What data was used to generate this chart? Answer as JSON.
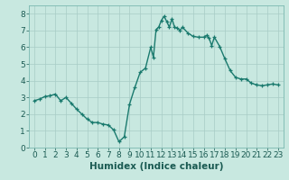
{
  "x": [
    0,
    0.5,
    1,
    1.5,
    2,
    2.5,
    3,
    3.5,
    4,
    4.5,
    5,
    5.5,
    6,
    6.5,
    7,
    7.5,
    8,
    8.5,
    9,
    9.5,
    10,
    10.5,
    11,
    11.25,
    11.5,
    11.75,
    12,
    12.25,
    12.5,
    12.75,
    13,
    13.25,
    13.5,
    13.75,
    14,
    14.5,
    15,
    15.5,
    16,
    16.25,
    16.5,
    16.75,
    17,
    17.5,
    18,
    18.5,
    19,
    19.5,
    20,
    20.5,
    21,
    21.5,
    22,
    22.5,
    23
  ],
  "y": [
    2.8,
    2.9,
    3.05,
    3.1,
    3.2,
    2.8,
    3.0,
    2.65,
    2.3,
    2.0,
    1.7,
    1.5,
    1.5,
    1.4,
    1.35,
    1.05,
    0.35,
    0.65,
    2.6,
    3.6,
    4.5,
    4.75,
    6.0,
    5.4,
    7.05,
    7.2,
    7.6,
    7.85,
    7.55,
    7.2,
    7.7,
    7.2,
    7.15,
    7.0,
    7.2,
    6.85,
    6.65,
    6.6,
    6.6,
    6.7,
    6.55,
    6.1,
    6.6,
    6.05,
    5.3,
    4.6,
    4.2,
    4.1,
    4.1,
    3.85,
    3.75,
    3.7,
    3.75,
    3.8,
    3.75
  ],
  "line_color": "#1a7a6e",
  "marker_color": "#1a7a6e",
  "bg_color": "#c8e8e0",
  "grid_color": "#a8ccc6",
  "grid_minor_color": "#bcd8d2",
  "xlabel": "Humidex (Indice chaleur)",
  "xlim": [
    -0.5,
    23.5
  ],
  "ylim": [
    0,
    8.5
  ],
  "xticks": [
    0,
    1,
    2,
    3,
    4,
    5,
    6,
    7,
    8,
    9,
    10,
    11,
    12,
    13,
    14,
    15,
    16,
    17,
    18,
    19,
    20,
    21,
    22,
    23
  ],
  "yticks": [
    0,
    1,
    2,
    3,
    4,
    5,
    6,
    7,
    8
  ],
  "tick_fontsize": 6.5,
  "xlabel_fontsize": 7.5,
  "line_width": 1.0,
  "marker_size": 3.5
}
